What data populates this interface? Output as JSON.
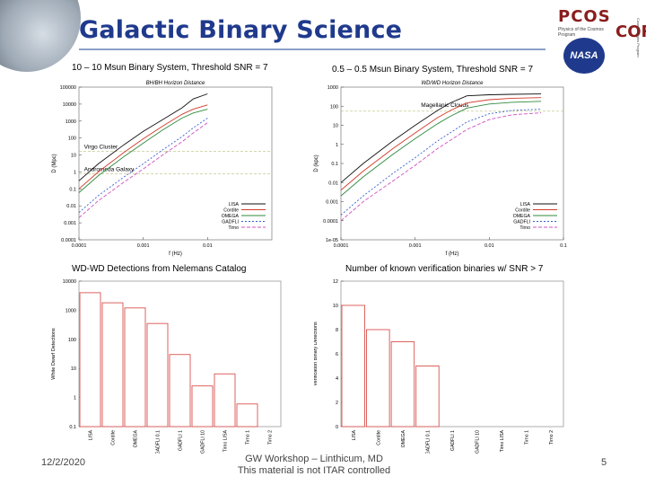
{
  "slide": {
    "title": "Galactic Binary Science",
    "logos": {
      "pcos": "PCOS",
      "pcos_sub": "Physics of the Cosmos Program",
      "nasa": "NASA",
      "cor": "COR",
      "cor_sub": "Cosmic Origins Program"
    },
    "captions": {
      "c1": "10 – 10 Msun Binary System, Threshold SNR = 7",
      "c2": "0.5 – 0.5 Msun Binary System, Threshold SNR = 7",
      "c3": "WD-WD Detections from Nelemans Catalog",
      "c4": "Number of known verification binaries w/ SNR > 7"
    },
    "footer": {
      "date": "12/2/2020",
      "line1": "GW Workshop – Linthicum, MD",
      "line2": "This material is not ITAR controlled",
      "page": "5"
    }
  },
  "chart_data": [
    {
      "type": "line",
      "title": "BH/BH Horizon Distance",
      "xlabel": "f (Hz)",
      "ylabel": "D (Mpc)",
      "xscale": "log",
      "yscale": "log",
      "xlim": [
        0.0001,
        0.1
      ],
      "ylim": [
        0.0001,
        100000
      ],
      "xticks": [
        {
          "v": 0.0001,
          "label": "0.0001"
        },
        {
          "v": 0.001,
          "label": "0.001"
        },
        {
          "v": 0.01,
          "label": "0.01"
        }
      ],
      "yticks": [
        {
          "v": 100000,
          "label": "100000"
        },
        {
          "v": 10000,
          "label": "10000"
        },
        {
          "v": 1000,
          "label": "1000"
        },
        {
          "v": 100,
          "label": "100"
        },
        {
          "v": 10,
          "label": "10"
        },
        {
          "v": 1,
          "label": "1"
        },
        {
          "v": 0.1,
          "label": "0.1"
        },
        {
          "v": 0.01,
          "label": "0.01"
        },
        {
          "v": 0.001,
          "label": "0.001"
        },
        {
          "v": 0.0001,
          "label": "0.0001"
        }
      ],
      "annotations": [
        {
          "text": "Virgo Cluster",
          "x": 0.00012,
          "y": 16.5,
          "line_y": 16.5
        },
        {
          "text": "Andromeda Galaxy",
          "x": 0.00012,
          "y": 0.77,
          "line_y": 0.77
        }
      ],
      "legend": [
        "LISA",
        "Cordite",
        "OMEGA",
        "GADFLI",
        "Tirno"
      ],
      "series": [
        {
          "name": "LISA",
          "color": "#111111",
          "dash": "",
          "x": [
            0.0001,
            0.0002,
            0.0005,
            0.001,
            0.002,
            0.004,
            0.006,
            0.01
          ],
          "y": [
            0.3,
            3,
            40,
            250,
            1200,
            6000,
            20000,
            40000
          ]
        },
        {
          "name": "Cordite",
          "color": "#d23a2a",
          "dash": "",
          "x": [
            0.0001,
            0.0002,
            0.0005,
            0.001,
            0.002,
            0.004,
            0.006,
            0.01
          ],
          "y": [
            0.1,
            1,
            14,
            90,
            500,
            2500,
            5000,
            9000
          ]
        },
        {
          "name": "OMEGA",
          "color": "#2e8b3e",
          "dash": "",
          "x": [
            0.0001,
            0.0002,
            0.0005,
            0.001,
            0.002,
            0.004,
            0.006,
            0.01
          ],
          "y": [
            0.06,
            0.6,
            8,
            50,
            300,
            1500,
            3000,
            5000
          ]
        },
        {
          "name": "GADFLI",
          "color": "#3a5fcd",
          "dash": "2,2",
          "x": [
            0.0001,
            0.0002,
            0.0005,
            0.001,
            0.002,
            0.004,
            0.006,
            0.01
          ],
          "y": [
            0.004,
            0.04,
            0.5,
            3,
            20,
            120,
            400,
            1500
          ]
        },
        {
          "name": "Tirno",
          "color": "#d050c0",
          "dash": "4,2",
          "x": [
            0.0001,
            0.0002,
            0.0005,
            0.001,
            0.002,
            0.004,
            0.006,
            0.01
          ],
          "y": [
            0.002,
            0.02,
            0.25,
            1.5,
            10,
            60,
            200,
            800
          ]
        }
      ]
    },
    {
      "type": "line",
      "title": "WD/WD Horizon Distance",
      "xlabel": "f (Hz)",
      "ylabel": "D (kpc)",
      "xscale": "log",
      "yscale": "log",
      "xlim": [
        0.0001,
        0.1
      ],
      "ylim": [
        1e-05,
        1000
      ],
      "xticks": [
        {
          "v": 0.0001,
          "label": "0.0001"
        },
        {
          "v": 0.001,
          "label": "0.001"
        },
        {
          "v": 0.01,
          "label": "0.01"
        },
        {
          "v": 0.1,
          "label": "0.1"
        }
      ],
      "yticks": [
        {
          "v": 1000,
          "label": "1000"
        },
        {
          "v": 100,
          "label": "100"
        },
        {
          "v": 10,
          "label": "10"
        },
        {
          "v": 1,
          "label": "1"
        },
        {
          "v": 0.1,
          "label": "0.1"
        },
        {
          "v": 0.01,
          "label": "0.01"
        },
        {
          "v": 0.001,
          "label": "0.001"
        },
        {
          "v": 0.0001,
          "label": "0.0001"
        },
        {
          "v": 1e-05,
          "label": "1e-05"
        }
      ],
      "annotations": [
        {
          "text": "Magellanic Clouds",
          "x": 0.0012,
          "y": 65,
          "line_y": 55
        }
      ],
      "legend": [
        "LISA",
        "Cordite",
        "OMEGA",
        "GADFLI",
        "Tirno"
      ],
      "series": [
        {
          "name": "LISA",
          "color": "#111111",
          "dash": "",
          "x": [
            0.0001,
            0.0002,
            0.0005,
            0.001,
            0.002,
            0.003,
            0.005,
            0.01,
            0.02,
            0.05
          ],
          "y": [
            0.01,
            0.1,
            1.5,
            10,
            60,
            150,
            350,
            400,
            420,
            440
          ]
        },
        {
          "name": "Cordite",
          "color": "#d23a2a",
          "dash": "",
          "x": [
            0.0001,
            0.0002,
            0.0005,
            0.001,
            0.002,
            0.003,
            0.005,
            0.01,
            0.02,
            0.05
          ],
          "y": [
            0.004,
            0.04,
            0.6,
            4,
            25,
            60,
            150,
            220,
            260,
            280
          ]
        },
        {
          "name": "OMEGA",
          "color": "#2e8b3e",
          "dash": "",
          "x": [
            0.0001,
            0.0002,
            0.0005,
            0.001,
            0.002,
            0.003,
            0.005,
            0.01,
            0.02,
            0.05
          ],
          "y": [
            0.002,
            0.02,
            0.3,
            2,
            12,
            30,
            80,
            130,
            160,
            180
          ]
        },
        {
          "name": "GADFLI",
          "color": "#3a5fcd",
          "dash": "2,2",
          "x": [
            0.0001,
            0.0002,
            0.0005,
            0.001,
            0.002,
            0.005,
            0.01,
            0.02,
            0.05
          ],
          "y": [
            0.0002,
            0.002,
            0.03,
            0.2,
            1.5,
            15,
            40,
            60,
            70
          ]
        },
        {
          "name": "Tirno",
          "color": "#d050c0",
          "dash": "4,2",
          "x": [
            0.0001,
            0.0002,
            0.0005,
            0.001,
            0.002,
            0.005,
            0.01,
            0.02,
            0.05
          ],
          "y": [
            0.0001,
            0.001,
            0.012,
            0.08,
            0.6,
            6,
            20,
            35,
            45
          ]
        }
      ]
    },
    {
      "type": "bar",
      "ylabel": "White Dwarf Detections",
      "yscale": "log",
      "ylim": [
        0.1,
        10000
      ],
      "yticks": [
        {
          "v": 10000,
          "label": "10000"
        },
        {
          "v": 1000,
          "label": "1000"
        },
        {
          "v": 100,
          "label": "100"
        },
        {
          "v": 10,
          "label": "10"
        },
        {
          "v": 1,
          "label": "1"
        },
        {
          "v": 0.1,
          "label": "0.1"
        }
      ],
      "categories": [
        "LISA",
        "Cordite",
        "OMEGA",
        "GADFLI 0.1",
        "GADFLI 1",
        "GADFLI 10",
        "Tirno LISA",
        "Tirno 1",
        "Tirno 2"
      ],
      "values": [
        4000,
        1800,
        1200,
        350,
        30,
        2.5,
        6.5,
        0.6,
        null
      ]
    },
    {
      "type": "bar",
      "ylabel": "Verification Binary Detections",
      "ylim": [
        0,
        12
      ],
      "yticks": [
        {
          "v": 12,
          "label": "12"
        },
        {
          "v": 10,
          "label": "10"
        },
        {
          "v": 8,
          "label": "8"
        },
        {
          "v": 6,
          "label": "6"
        },
        {
          "v": 4,
          "label": "4"
        },
        {
          "v": 2,
          "label": "2"
        },
        {
          "v": 0,
          "label": "0"
        }
      ],
      "categories": [
        "LISA",
        "Cordite",
        "OMEGA",
        "GADFLI 0.1",
        "GADFLI 1",
        "GADFLI 10",
        "Tirno LISA",
        "Tirno 1",
        "Tirno 2"
      ],
      "values": [
        10,
        8,
        7,
        5,
        0,
        0,
        0,
        0,
        0
      ]
    }
  ]
}
